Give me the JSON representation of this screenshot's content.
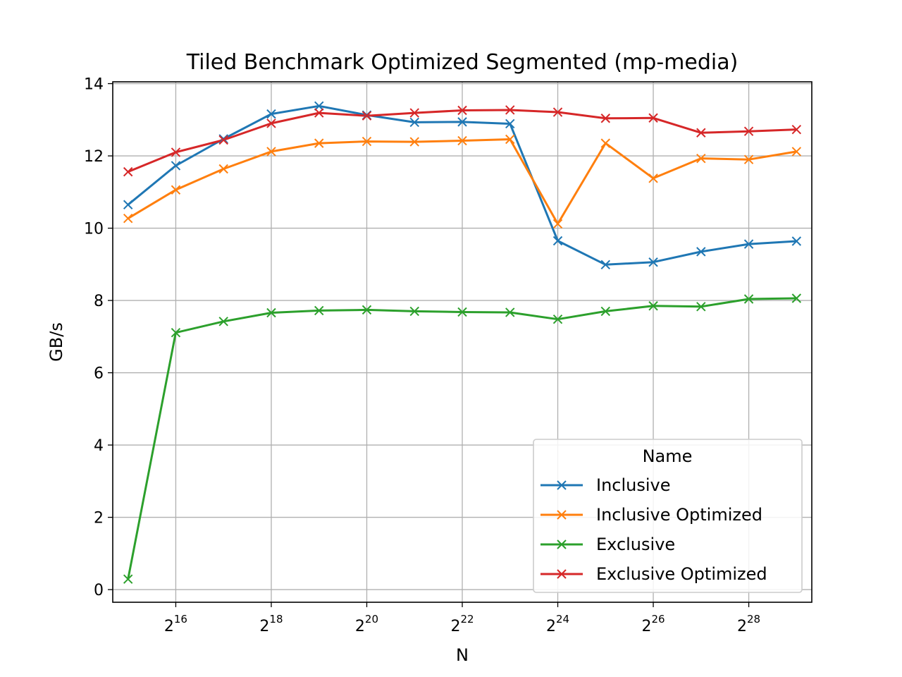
{
  "chart_data": {
    "type": "line",
    "title": "Tiled Benchmark Optimized Segmented (mp-media)",
    "xlabel": "N",
    "ylabel": "GB/s",
    "x_scale": "log2",
    "x": [
      32768,
      65536,
      131072,
      262144,
      524288,
      1048576,
      2097152,
      4194304,
      8388608,
      16777216,
      33554432,
      67108864,
      134217728,
      268435456,
      536870912
    ],
    "x_tick_base": "2",
    "x_tick_exponents": [
      "16",
      "18",
      "20",
      "22",
      "24",
      "26",
      "28"
    ],
    "y_ticks": [
      "0",
      "2",
      "4",
      "6",
      "8",
      "10",
      "12",
      "14"
    ],
    "ylim": [
      -0.35,
      14.05
    ],
    "grid": true,
    "legend": {
      "title": "Name",
      "position": "lower-right"
    },
    "series": [
      {
        "name": "Inclusive",
        "color": "#1f77b4",
        "marker": "x",
        "values": [
          10.65,
          11.73,
          12.47,
          13.16,
          13.38,
          13.13,
          12.93,
          12.94,
          12.89,
          9.65,
          8.99,
          9.06,
          9.35,
          9.56,
          9.64
        ]
      },
      {
        "name": "Inclusive Optimized",
        "color": "#ff7f0e",
        "marker": "x",
        "values": [
          10.27,
          11.06,
          11.64,
          12.12,
          12.35,
          12.4,
          12.39,
          12.42,
          12.46,
          10.12,
          12.35,
          11.38,
          11.93,
          11.9,
          12.12
        ]
      },
      {
        "name": "Exclusive",
        "color": "#2ca02c",
        "marker": "x",
        "values": [
          0.29,
          7.11,
          7.42,
          7.66,
          7.72,
          7.74,
          7.7,
          7.68,
          7.67,
          7.48,
          7.7,
          7.85,
          7.83,
          8.04,
          8.06
        ]
      },
      {
        "name": "Exclusive Optimized",
        "color": "#d62728",
        "marker": "x",
        "values": [
          11.56,
          12.1,
          12.44,
          12.9,
          13.19,
          13.11,
          13.19,
          13.26,
          13.27,
          13.21,
          13.04,
          13.05,
          12.64,
          12.68,
          12.73
        ]
      }
    ]
  }
}
